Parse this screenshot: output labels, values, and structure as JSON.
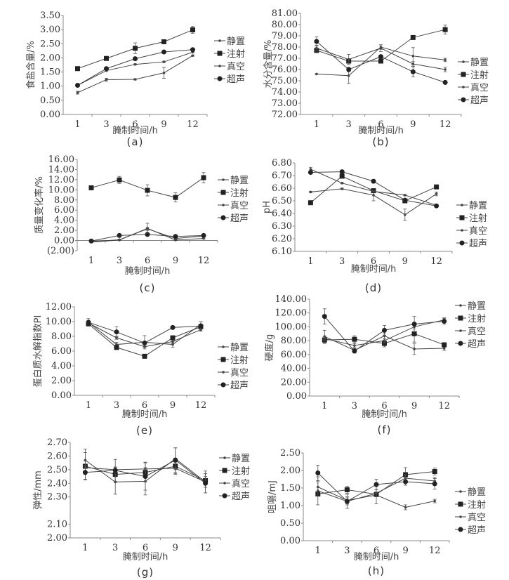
{
  "legend_labels": [
    "静置",
    "注射",
    "真空",
    "超声"
  ],
  "colors": {
    "line": "#444444",
    "axis": "#888888",
    "text": "#333333"
  },
  "chart_data": [
    {
      "id": "a",
      "panel_label": "(a)",
      "type": "line",
      "title": "",
      "xlabel": "腌制时间/h",
      "ylabel": "食盐含量/%",
      "categories": [
        "1",
        "3",
        "6",
        "9",
        "12"
      ],
      "ylim": [
        0,
        3.5
      ],
      "yticks": [
        "0.00",
        "0.50",
        "1.00",
        "1.50",
        "2.00",
        "2.50",
        "3.00",
        "3.50"
      ],
      "legend_position": "right",
      "series": [
        {
          "name": "静置",
          "marker": "dash",
          "values": [
            0.77,
            1.23,
            1.24,
            1.47,
            2.08
          ],
          "errors": [
            0.05,
            0.05,
            0.02,
            0.19,
            0.02
          ]
        },
        {
          "name": "注射",
          "marker": "square",
          "values": [
            1.62,
            1.98,
            2.34,
            2.57,
            2.99
          ],
          "errors": [
            0.02,
            0.07,
            0.19,
            0.03,
            0.12
          ]
        },
        {
          "name": "真空",
          "marker": "dash",
          "values": [
            1.03,
            1.55,
            1.77,
            1.86,
            2.2
          ],
          "errors": [
            0.02,
            0.03,
            0.02,
            0.02,
            0.02
          ]
        },
        {
          "name": "超声",
          "marker": "circle",
          "values": [
            1.03,
            1.62,
            1.97,
            2.21,
            2.29
          ],
          "errors": [
            0.02,
            0.02,
            0.02,
            0.02,
            0.02
          ]
        }
      ]
    },
    {
      "id": "b",
      "panel_label": "(b)",
      "type": "line",
      "title": "",
      "xlabel": "腌制时间/h",
      "ylabel": "水分含量/%",
      "categories": [
        "1",
        "3",
        "6",
        "9",
        "12"
      ],
      "ylim": [
        72,
        81
      ],
      "yticks": [
        "72.00",
        "73.00",
        "74.00",
        "75.00",
        "76.00",
        "77.00",
        "78.00",
        "79.00",
        "80.00",
        "81.00"
      ],
      "legend_position": "right",
      "series": [
        {
          "name": "静置",
          "marker": "dash",
          "values": [
            75.6,
            75.45,
            78.0,
            77.2,
            76.85
          ],
          "errors": [
            0.02,
            0.7,
            0.2,
            0.75,
            0.15
          ]
        },
        {
          "name": "注射",
          "marker": "square",
          "values": [
            77.7,
            76.75,
            76.75,
            78.85,
            79.55
          ],
          "errors": [
            0.1,
            0.2,
            0.05,
            0.1,
            0.4
          ]
        },
        {
          "name": "真空",
          "marker": "dash",
          "values": [
            77.9,
            76.9,
            77.9,
            76.5,
            76.0
          ],
          "errors": [
            0.25,
            0.45,
            0.3,
            0.2,
            0.2
          ]
        },
        {
          "name": "超声",
          "marker": "circle",
          "values": [
            78.5,
            76.0,
            77.15,
            75.8,
            74.85
          ],
          "errors": [
            0.4,
            0.2,
            0.1,
            0.45,
            0.05
          ]
        }
      ]
    },
    {
      "id": "c",
      "panel_label": "(c)",
      "type": "line",
      "title": "",
      "xlabel": "腌制时间/h",
      "ylabel": "质量变化率/%",
      "categories": [
        "1",
        "3",
        "6",
        "9",
        "12"
      ],
      "ylim": [
        -2,
        16
      ],
      "yticks": [
        "(2.00)",
        "0.00",
        "2.00",
        "4.00",
        "6.00",
        "8.00",
        "10.00",
        "12.00",
        "14.00",
        "16.00"
      ],
      "legend_position": "right",
      "series": [
        {
          "name": "静置",
          "marker": "dash",
          "values": [
            -0.3,
            0.1,
            2.4,
            0.1,
            0.4
          ],
          "errors": [
            0.05,
            0.1,
            1.0,
            0.1,
            0.1
          ]
        },
        {
          "name": "注射",
          "marker": "square",
          "values": [
            10.4,
            11.95,
            9.9,
            8.5,
            12.4
          ],
          "errors": [
            0.1,
            0.7,
            1.1,
            0.9,
            1.0
          ]
        },
        {
          "name": "真空",
          "marker": "dash",
          "values": [
            -0.2,
            0.15,
            2.3,
            0.4,
            0.9
          ],
          "errors": [
            0.05,
            0.1,
            0.3,
            0.1,
            0.1
          ]
        },
        {
          "name": "超声",
          "marker": "circle",
          "values": [
            -0.1,
            1.0,
            1.2,
            0.8,
            1.0
          ],
          "errors": [
            0.05,
            0.1,
            0.1,
            0.1,
            0.1
          ]
        }
      ]
    },
    {
      "id": "d",
      "panel_label": "(d)",
      "type": "line",
      "title": "",
      "xlabel": "腌制时间/h",
      "ylabel": "pH",
      "categories": [
        "1",
        "3",
        "6",
        "9",
        "12"
      ],
      "ylim": [
        6.1,
        6.8
      ],
      "yticks": [
        "6.10",
        "6.20",
        "6.30",
        "6.40",
        "6.50",
        "6.60",
        "6.70",
        "6.80"
      ],
      "legend_position": "right",
      "series": [
        {
          "name": "静置",
          "marker": "dash",
          "values": [
            6.57,
            6.595,
            6.545,
            6.39,
            6.555
          ],
          "errors": [
            0.005,
            0.005,
            0.045,
            0.045,
            0.015
          ]
        },
        {
          "name": "注射",
          "marker": "square",
          "values": [
            6.485,
            6.695,
            6.58,
            6.5,
            6.61
          ],
          "errors": [
            0.005,
            0.005,
            0.01,
            0.01,
            0.015
          ]
        },
        {
          "name": "真空",
          "marker": "dash",
          "values": [
            6.75,
            6.64,
            6.575,
            6.545,
            6.465
          ],
          "errors": [
            0.015,
            0.005,
            0.005,
            0.005,
            0.005
          ]
        },
        {
          "name": "超声",
          "marker": "circle",
          "values": [
            6.725,
            6.73,
            6.655,
            6.505,
            6.46
          ],
          "errors": [
            0.005,
            0.005,
            0.005,
            0.005,
            0.005
          ]
        }
      ]
    },
    {
      "id": "e",
      "panel_label": "(e)",
      "type": "line",
      "title": "",
      "xlabel": "腌制时间/h",
      "ylabel": "蛋白质水解指数PI",
      "categories": [
        "1",
        "3",
        "6",
        "9",
        "12"
      ],
      "ylim": [
        0,
        12
      ],
      "yticks": [
        "0.00",
        "2.00",
        "4.00",
        "6.00",
        "8.00",
        "10.00",
        "12.00"
      ],
      "legend_position": "right",
      "series": [
        {
          "name": "静置",
          "marker": "dash",
          "values": [
            9.9,
            6.9,
            7.2,
            6.9,
            9.6
          ],
          "errors": [
            0.5,
            0.3,
            0.9,
            0.4,
            0.4
          ]
        },
        {
          "name": "注射",
          "marker": "square",
          "values": [
            9.7,
            6.5,
            5.3,
            7.8,
            9.3
          ],
          "errors": [
            0.1,
            0.3,
            0.1,
            0.2,
            0.2
          ]
        },
        {
          "name": "真空",
          "marker": "dash",
          "values": [
            9.8,
            7.8,
            6.6,
            7.3,
            8.9
          ],
          "errors": [
            0.1,
            0.2,
            0.1,
            0.2,
            0.2
          ]
        },
        {
          "name": "超声",
          "marker": "circle",
          "values": [
            9.9,
            8.6,
            7.1,
            9.2,
            9.4
          ],
          "errors": [
            0.1,
            0.7,
            0.2,
            0.1,
            0.2
          ]
        }
      ]
    },
    {
      "id": "f",
      "panel_label": "(f)",
      "type": "line",
      "title": "",
      "xlabel": "腌制时间/h",
      "ylabel": "硬度/g",
      "categories": [
        "1",
        "3",
        "6",
        "9",
        "12"
      ],
      "ylim": [
        0,
        140
      ],
      "yticks": [
        "0.00",
        "20.00",
        "40.00",
        "60.00",
        "80.00",
        "100.00",
        "120.00",
        "140.00"
      ],
      "legend_position": "top-right",
      "series": [
        {
          "name": "静置",
          "marker": "dash",
          "values": [
            86,
            66,
            87,
            68,
            69
          ],
          "errors": [
            9,
            3,
            4,
            8,
            3
          ]
        },
        {
          "name": "注射",
          "marker": "square",
          "values": [
            81,
            82,
            76,
            90,
            74
          ],
          "errors": [
            5,
            5,
            5,
            12,
            2
          ]
        },
        {
          "name": "真空",
          "marker": "dash",
          "values": [
            83,
            73,
            80,
            100,
            110
          ],
          "errors": [
            3,
            3,
            3,
            3,
            3
          ]
        },
        {
          "name": "超声",
          "marker": "circle",
          "values": [
            115,
            65,
            95,
            104,
            108
          ],
          "errors": [
            11,
            3,
            7,
            11,
            4
          ]
        }
      ]
    },
    {
      "id": "g",
      "panel_label": "(g)",
      "type": "line",
      "title": "",
      "xlabel": "腌制时间/h",
      "ylabel": "弹性/mm",
      "categories": [
        "1",
        "3",
        "6",
        "9",
        "12"
      ],
      "ylim": [
        2.0,
        2.7
      ],
      "yticks": [
        "2.00",
        "2.10",
        "2.30",
        "2.40",
        "2.50",
        "2.60",
        "2.70"
      ],
      "legend_position": "right",
      "series": [
        {
          "name": "静置",
          "marker": "dash",
          "values": [
            2.57,
            2.41,
            2.415,
            2.58,
            2.41
          ],
          "errors": [
            0.08,
            0.09,
            0.1,
            0.08,
            0.08
          ]
        },
        {
          "name": "注射",
          "marker": "square",
          "values": [
            2.525,
            2.465,
            2.48,
            2.525,
            2.42
          ],
          "errors": [
            0.1,
            0.05,
            0.07,
            0.06,
            0.05
          ]
        },
        {
          "name": "真空",
          "marker": "dash",
          "values": [
            2.515,
            2.5,
            2.505,
            2.51,
            2.41
          ],
          "errors": [
            0.05,
            0.02,
            0.05,
            0.04,
            0.04
          ]
        },
        {
          "name": "超声",
          "marker": "circle",
          "values": [
            2.48,
            2.495,
            2.45,
            2.57,
            2.4
          ],
          "errors": [
            0.05,
            0.08,
            0.1,
            0.09,
            0.07
          ]
        }
      ]
    },
    {
      "id": "h",
      "panel_label": "(h)",
      "type": "line",
      "title": "",
      "xlabel": "腌制时间/h",
      "ylabel": "咀嚼/mJ",
      "categories": [
        "1",
        "3",
        "6",
        "9",
        "12"
      ],
      "ylim": [
        0,
        2.5
      ],
      "yticks": [
        "0.00",
        "0.50",
        "1.00",
        "1.50",
        "2.00",
        "2.50"
      ],
      "legend_position": "right",
      "series": [
        {
          "name": "静置",
          "marker": "dash",
          "values": [
            1.53,
            1.15,
            1.3,
            0.95,
            1.13
          ],
          "errors": [
            0.15,
            0.1,
            0.25,
            0.07,
            0.05
          ]
        },
        {
          "name": "注射",
          "marker": "square",
          "values": [
            1.33,
            1.45,
            1.32,
            1.88,
            1.97
          ],
          "errors": [
            0.05,
            0.1,
            0.05,
            0.2,
            0.1
          ]
        },
        {
          "name": "真空",
          "marker": "dash",
          "values": [
            1.42,
            1.12,
            1.35,
            1.78,
            1.7
          ],
          "errors": [
            0.4,
            0.2,
            0.1,
            0.1,
            0.1
          ]
        },
        {
          "name": "超声",
          "marker": "circle",
          "values": [
            1.93,
            1.12,
            1.6,
            1.68,
            1.62
          ],
          "errors": [
            0.22,
            0.1,
            0.15,
            0.1,
            0.15
          ]
        }
      ]
    }
  ]
}
